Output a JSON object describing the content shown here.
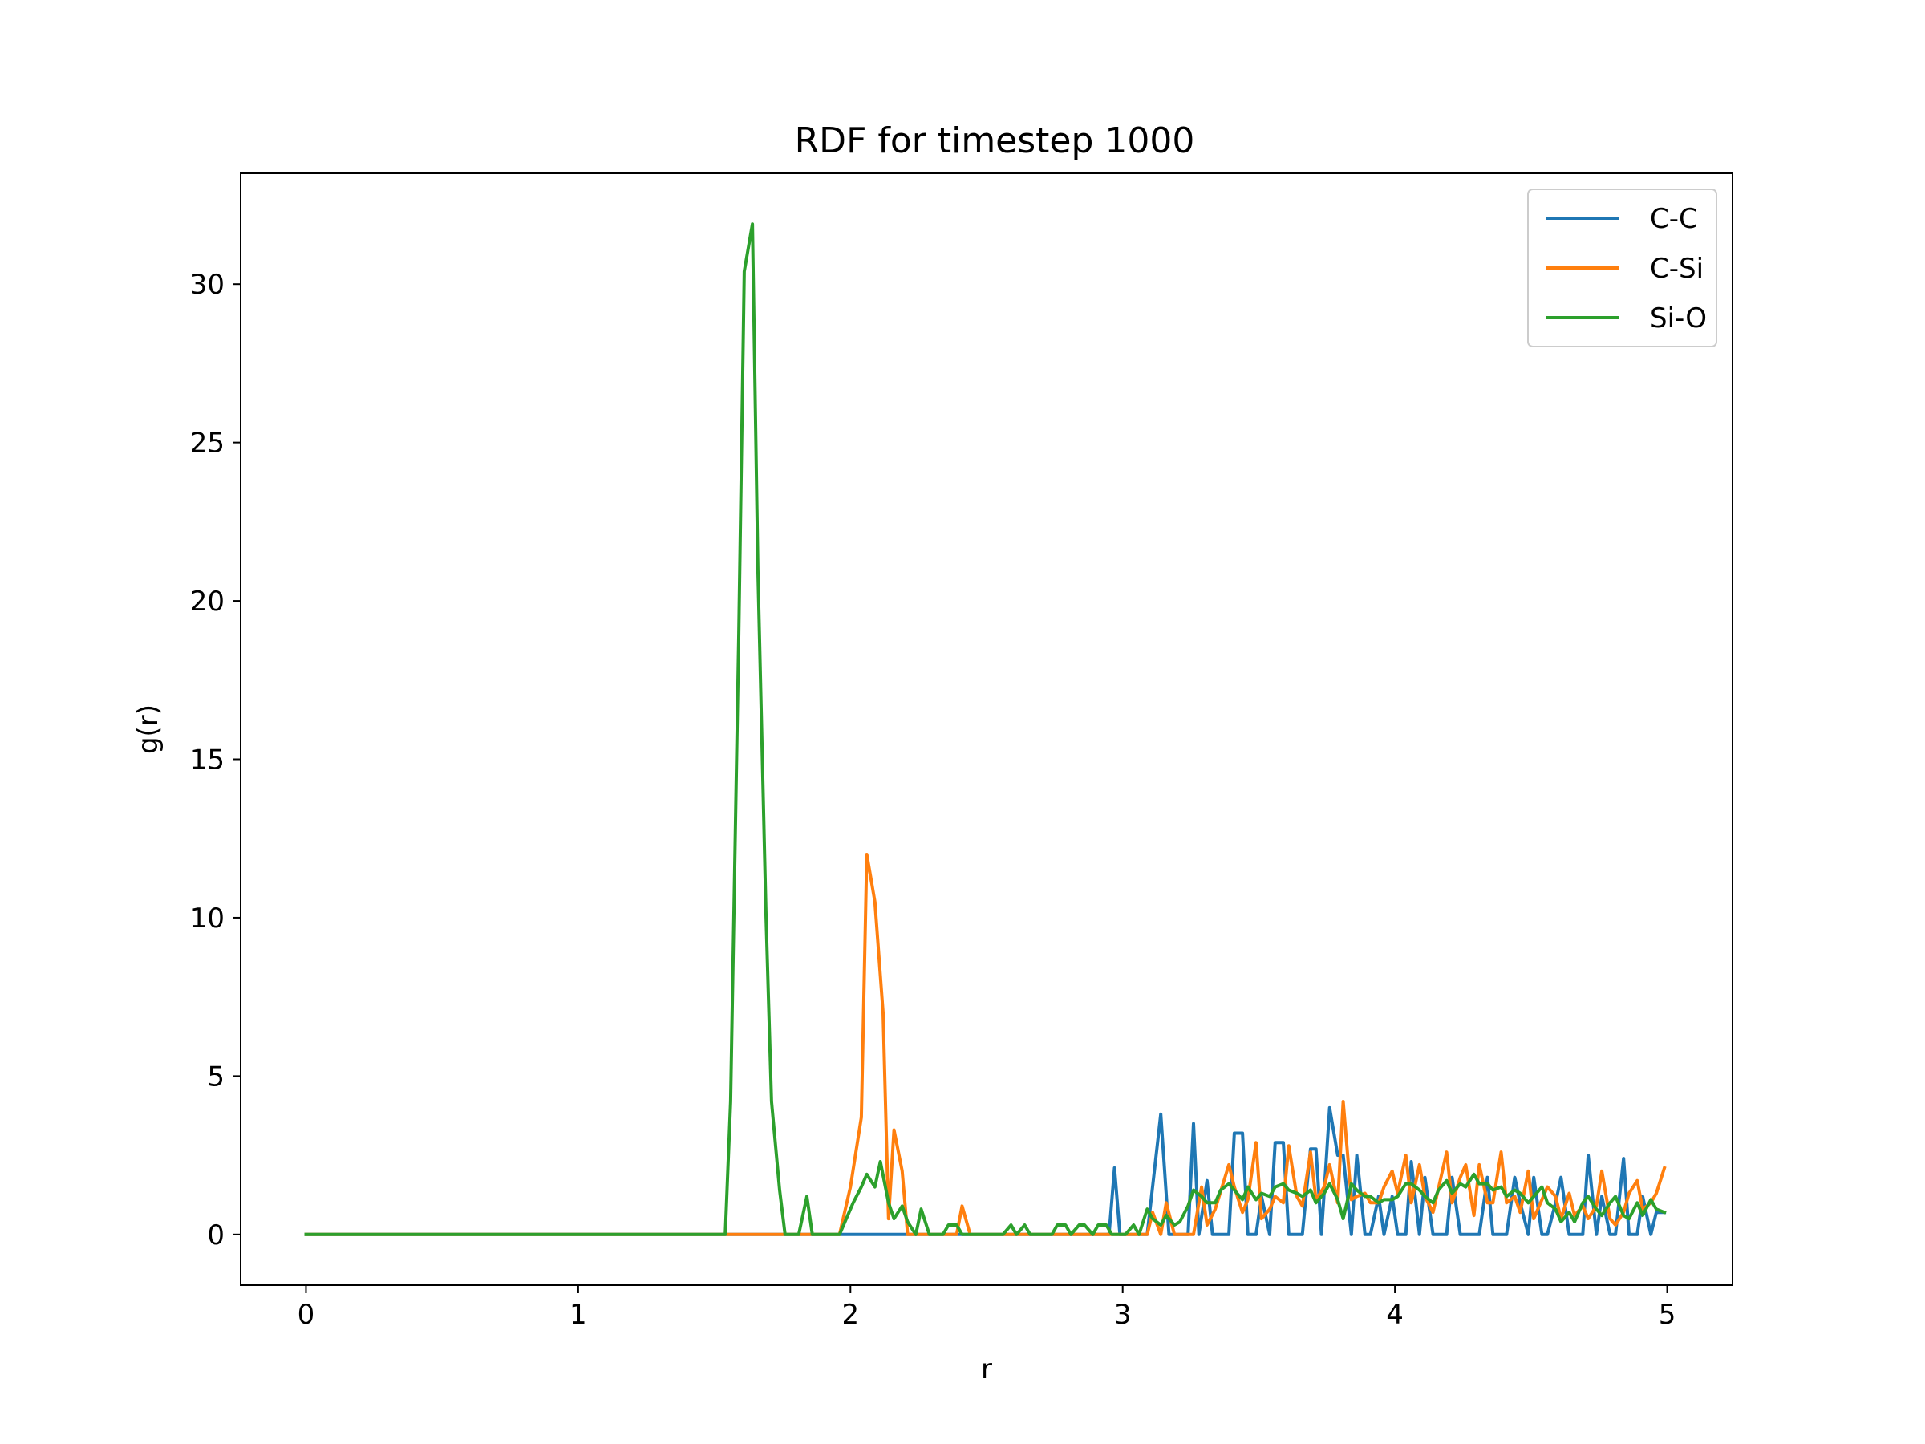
{
  "chart_data": {
    "type": "line",
    "title": "RDF for timestep 1000",
    "xlabel": "r",
    "ylabel": "g(r)",
    "xlim": [
      -0.24,
      5.24
    ],
    "ylim": [
      -1.6,
      33.5
    ],
    "xticks": [
      0,
      1,
      2,
      3,
      4,
      5
    ],
    "yticks": [
      0,
      5,
      10,
      15,
      20,
      25,
      30
    ],
    "grid": false,
    "legend_position": "top-right",
    "series": [
      {
        "name": "C-C",
        "color": "#1f77b4",
        "points": [
          [
            0,
            0
          ],
          [
            2.0,
            0
          ],
          [
            2.95,
            0
          ],
          [
            2.97,
            2.1
          ],
          [
            2.99,
            0
          ],
          [
            3.09,
            0
          ],
          [
            3.14,
            3.8
          ],
          [
            3.17,
            0
          ],
          [
            3.24,
            0
          ],
          [
            3.26,
            3.5
          ],
          [
            3.28,
            0
          ],
          [
            3.31,
            1.7
          ],
          [
            3.33,
            0
          ],
          [
            3.39,
            0
          ],
          [
            3.41,
            3.2
          ],
          [
            3.44,
            3.2
          ],
          [
            3.46,
            0
          ],
          [
            3.49,
            0
          ],
          [
            3.51,
            1.2
          ],
          [
            3.54,
            0
          ],
          [
            3.56,
            2.9
          ],
          [
            3.59,
            2.9
          ],
          [
            3.61,
            0
          ],
          [
            3.66,
            0
          ],
          [
            3.69,
            2.7
          ],
          [
            3.71,
            2.7
          ],
          [
            3.73,
            0
          ],
          [
            3.76,
            4.0
          ],
          [
            3.79,
            2.5
          ],
          [
            3.81,
            2.5
          ],
          [
            3.84,
            0
          ],
          [
            3.86,
            2.5
          ],
          [
            3.89,
            0
          ],
          [
            3.91,
            0
          ],
          [
            3.94,
            1.2
          ],
          [
            3.96,
            0
          ],
          [
            3.99,
            1.2
          ],
          [
            4.01,
            0
          ],
          [
            4.04,
            0
          ],
          [
            4.06,
            2.3
          ],
          [
            4.09,
            0
          ],
          [
            4.11,
            1.8
          ],
          [
            4.14,
            0
          ],
          [
            4.19,
            0
          ],
          [
            4.21,
            1.8
          ],
          [
            4.24,
            0
          ],
          [
            4.31,
            0
          ],
          [
            4.34,
            1.8
          ],
          [
            4.36,
            0
          ],
          [
            4.41,
            0
          ],
          [
            4.44,
            1.8
          ],
          [
            4.46,
            1.0
          ],
          [
            4.49,
            0
          ],
          [
            4.51,
            1.8
          ],
          [
            4.54,
            0
          ],
          [
            4.56,
            0
          ],
          [
            4.59,
            1.0
          ],
          [
            4.61,
            1.8
          ],
          [
            4.64,
            0
          ],
          [
            4.69,
            0
          ],
          [
            4.71,
            2.5
          ],
          [
            4.74,
            0
          ],
          [
            4.76,
            1.2
          ],
          [
            4.79,
            0
          ],
          [
            4.81,
            0
          ],
          [
            4.84,
            2.4
          ],
          [
            4.86,
            0
          ],
          [
            4.89,
            0
          ],
          [
            4.91,
            1.2
          ],
          [
            4.94,
            0
          ],
          [
            4.96,
            0.7
          ],
          [
            4.99,
            0.7
          ]
        ]
      },
      {
        "name": "C-Si",
        "color": "#ff7f0e",
        "points": [
          [
            0,
            0
          ],
          [
            1.96,
            0
          ],
          [
            2.0,
            1.5
          ],
          [
            2.04,
            3.7
          ],
          [
            2.06,
            12.0
          ],
          [
            2.09,
            10.5
          ],
          [
            2.12,
            7.0
          ],
          [
            2.14,
            0.5
          ],
          [
            2.16,
            3.3
          ],
          [
            2.19,
            2.0
          ],
          [
            2.21,
            0
          ],
          [
            2.39,
            0
          ],
          [
            2.41,
            0.9
          ],
          [
            2.44,
            0
          ],
          [
            3.09,
            0
          ],
          [
            3.11,
            0.7
          ],
          [
            3.14,
            0
          ],
          [
            3.16,
            1.0
          ],
          [
            3.19,
            0
          ],
          [
            3.26,
            0
          ],
          [
            3.29,
            1.5
          ],
          [
            3.31,
            0.3
          ],
          [
            3.34,
            0.8
          ],
          [
            3.39,
            2.2
          ],
          [
            3.41,
            1.5
          ],
          [
            3.44,
            0.7
          ],
          [
            3.46,
            1.1
          ],
          [
            3.49,
            2.9
          ],
          [
            3.51,
            0.5
          ],
          [
            3.54,
            0.8
          ],
          [
            3.56,
            1.2
          ],
          [
            3.59,
            1.0
          ],
          [
            3.61,
            2.8
          ],
          [
            3.64,
            1.2
          ],
          [
            3.66,
            0.9
          ],
          [
            3.69,
            2.6
          ],
          [
            3.71,
            1.1
          ],
          [
            3.74,
            1.5
          ],
          [
            3.76,
            2.2
          ],
          [
            3.79,
            1.0
          ],
          [
            3.81,
            4.2
          ],
          [
            3.84,
            1.1
          ],
          [
            3.86,
            1.2
          ],
          [
            3.89,
            1.3
          ],
          [
            3.91,
            1.0
          ],
          [
            3.94,
            1.0
          ],
          [
            3.96,
            1.5
          ],
          [
            3.99,
            2.0
          ],
          [
            4.01,
            1.3
          ],
          [
            4.04,
            2.5
          ],
          [
            4.06,
            1.0
          ],
          [
            4.09,
            2.2
          ],
          [
            4.11,
            1.2
          ],
          [
            4.14,
            0.7
          ],
          [
            4.19,
            2.6
          ],
          [
            4.21,
            1.0
          ],
          [
            4.24,
            1.8
          ],
          [
            4.26,
            2.2
          ],
          [
            4.29,
            0.6
          ],
          [
            4.31,
            2.2
          ],
          [
            4.34,
            1.0
          ],
          [
            4.36,
            1.0
          ],
          [
            4.39,
            2.6
          ],
          [
            4.41,
            1.0
          ],
          [
            4.44,
            1.2
          ],
          [
            4.46,
            0.7
          ],
          [
            4.49,
            2.0
          ],
          [
            4.51,
            0.5
          ],
          [
            4.54,
            1.1
          ],
          [
            4.56,
            1.5
          ],
          [
            4.59,
            1.2
          ],
          [
            4.61,
            0.5
          ],
          [
            4.64,
            1.3
          ],
          [
            4.66,
            0.6
          ],
          [
            4.69,
            0.9
          ],
          [
            4.71,
            0.5
          ],
          [
            4.74,
            0.9
          ],
          [
            4.76,
            2.0
          ],
          [
            4.79,
            0.5
          ],
          [
            4.81,
            0.3
          ],
          [
            4.84,
            0.7
          ],
          [
            4.86,
            1.3
          ],
          [
            4.89,
            1.7
          ],
          [
            4.91,
            0.8
          ],
          [
            4.94,
            1.0
          ],
          [
            4.96,
            1.3
          ],
          [
            4.99,
            2.1
          ]
        ]
      },
      {
        "name": "Si-O",
        "color": "#2ca02c",
        "points": [
          [
            0,
            0
          ],
          [
            1.54,
            0
          ],
          [
            1.56,
            4.2
          ],
          [
            1.59,
            19.0
          ],
          [
            1.61,
            30.4
          ],
          [
            1.64,
            31.9
          ],
          [
            1.66,
            21.0
          ],
          [
            1.69,
            10.0
          ],
          [
            1.71,
            4.2
          ],
          [
            1.74,
            1.4
          ],
          [
            1.76,
            0
          ],
          [
            1.81,
            0
          ],
          [
            1.84,
            1.2
          ],
          [
            1.86,
            0
          ],
          [
            1.96,
            0
          ],
          [
            1.99,
            0.6
          ],
          [
            2.01,
            1.0
          ],
          [
            2.04,
            1.5
          ],
          [
            2.06,
            1.9
          ],
          [
            2.09,
            1.5
          ],
          [
            2.11,
            2.3
          ],
          [
            2.14,
            1.0
          ],
          [
            2.16,
            0.5
          ],
          [
            2.19,
            0.9
          ],
          [
            2.21,
            0.4
          ],
          [
            2.24,
            0
          ],
          [
            2.26,
            0.8
          ],
          [
            2.29,
            0
          ],
          [
            2.34,
            0
          ],
          [
            2.36,
            0.3
          ],
          [
            2.39,
            0.3
          ],
          [
            2.41,
            0
          ],
          [
            2.56,
            0
          ],
          [
            2.59,
            0.3
          ],
          [
            2.61,
            0
          ],
          [
            2.64,
            0.3
          ],
          [
            2.66,
            0
          ],
          [
            2.74,
            0
          ],
          [
            2.76,
            0.3
          ],
          [
            2.79,
            0.3
          ],
          [
            2.81,
            0
          ],
          [
            2.84,
            0.3
          ],
          [
            2.86,
            0.3
          ],
          [
            2.89,
            0
          ],
          [
            2.91,
            0.3
          ],
          [
            2.94,
            0.3
          ],
          [
            2.96,
            0
          ],
          [
            3.01,
            0
          ],
          [
            3.04,
            0.3
          ],
          [
            3.06,
            0
          ],
          [
            3.09,
            0.8
          ],
          [
            3.11,
            0.5
          ],
          [
            3.14,
            0.3
          ],
          [
            3.16,
            0.6
          ],
          [
            3.19,
            0.3
          ],
          [
            3.21,
            0.4
          ],
          [
            3.24,
            0.9
          ],
          [
            3.26,
            1.4
          ],
          [
            3.29,
            1.2
          ],
          [
            3.31,
            1.0
          ],
          [
            3.34,
            1.0
          ],
          [
            3.36,
            1.4
          ],
          [
            3.39,
            1.6
          ],
          [
            3.41,
            1.4
          ],
          [
            3.44,
            1.1
          ],
          [
            3.46,
            1.5
          ],
          [
            3.49,
            1.1
          ],
          [
            3.51,
            1.3
          ],
          [
            3.54,
            1.2
          ],
          [
            3.56,
            1.5
          ],
          [
            3.59,
            1.6
          ],
          [
            3.61,
            1.4
          ],
          [
            3.64,
            1.3
          ],
          [
            3.66,
            1.2
          ],
          [
            3.69,
            1.4
          ],
          [
            3.71,
            1.0
          ],
          [
            3.74,
            1.3
          ],
          [
            3.76,
            1.6
          ],
          [
            3.79,
            1.1
          ],
          [
            3.81,
            0.5
          ],
          [
            3.84,
            1.6
          ],
          [
            3.86,
            1.4
          ],
          [
            3.89,
            1.2
          ],
          [
            3.91,
            1.2
          ],
          [
            3.94,
            1.0
          ],
          [
            3.96,
            1.1
          ],
          [
            3.99,
            1.1
          ],
          [
            4.01,
            1.2
          ],
          [
            4.04,
            1.6
          ],
          [
            4.06,
            1.6
          ],
          [
            4.09,
            1.4
          ],
          [
            4.11,
            1.2
          ],
          [
            4.14,
            1.0
          ],
          [
            4.16,
            1.4
          ],
          [
            4.19,
            1.7
          ],
          [
            4.21,
            1.3
          ],
          [
            4.24,
            1.6
          ],
          [
            4.26,
            1.5
          ],
          [
            4.29,
            1.9
          ],
          [
            4.31,
            1.6
          ],
          [
            4.34,
            1.6
          ],
          [
            4.36,
            1.4
          ],
          [
            4.39,
            1.5
          ],
          [
            4.41,
            1.2
          ],
          [
            4.44,
            1.4
          ],
          [
            4.46,
            1.3
          ],
          [
            4.49,
            1.0
          ],
          [
            4.51,
            1.2
          ],
          [
            4.54,
            1.5
          ],
          [
            4.56,
            1.0
          ],
          [
            4.59,
            0.8
          ],
          [
            4.61,
            0.4
          ],
          [
            4.64,
            0.7
          ],
          [
            4.66,
            0.4
          ],
          [
            4.69,
            1.0
          ],
          [
            4.71,
            1.2
          ],
          [
            4.74,
            0.8
          ],
          [
            4.76,
            0.6
          ],
          [
            4.79,
            1.0
          ],
          [
            4.81,
            1.2
          ],
          [
            4.84,
            0.6
          ],
          [
            4.86,
            0.5
          ],
          [
            4.89,
            1.0
          ],
          [
            4.91,
            0.6
          ],
          [
            4.94,
            1.1
          ],
          [
            4.96,
            0.8
          ],
          [
            4.99,
            0.7
          ]
        ]
      }
    ]
  }
}
